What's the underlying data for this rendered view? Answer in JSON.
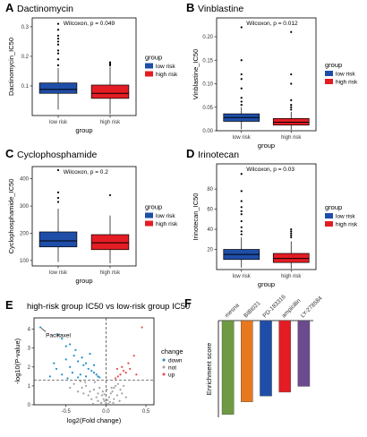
{
  "colors": {
    "low_risk": "#1f4ea8",
    "high_risk": "#e41d24",
    "down": "#1f8ec9",
    "not": "#a0a0a0",
    "up": "#e64b4b",
    "bars": [
      "#6e9a44",
      "#e8781e",
      "#1f4ea8",
      "#e41d24",
      "#6b4b8e"
    ]
  },
  "chart_data": [
    {
      "type": "box",
      "panel": "A",
      "title": "Dactinomycin",
      "xlabel": "group",
      "ylabel": "Dactinomycin_IC50",
      "categories": [
        "low risk",
        "high risk"
      ],
      "ylim": [
        0,
        0.33
      ],
      "yticks": [
        0.1,
        0.2,
        0.3
      ],
      "stat": "Wilcoxon, p = 0.049",
      "legend": {
        "title": "group",
        "items": [
          "low risk",
          "high risk"
        ]
      },
      "boxes": [
        {
          "q1": 0.075,
          "median": 0.088,
          "q3": 0.11,
          "whisker_low": 0.02,
          "whisker_high": 0.16,
          "outliers": [
            0.17,
            0.19,
            0.21,
            0.22,
            0.24,
            0.25,
            0.26,
            0.27,
            0.29,
            0.31
          ]
        },
        {
          "q1": 0.058,
          "median": 0.075,
          "q3": 0.103,
          "whisker_low": 0.005,
          "whisker_high": 0.165,
          "outliers": [
            0.17,
            0.175,
            0.18
          ]
        }
      ]
    },
    {
      "type": "box",
      "panel": "B",
      "title": "Vinblastine",
      "xlabel": "group",
      "ylabel": "Vinblastine_IC50",
      "categories": [
        "low risk",
        "high risk"
      ],
      "ylim": [
        0,
        0.24
      ],
      "yticks": [
        0.0,
        0.05,
        0.1,
        0.15,
        0.2
      ],
      "tick_labels": [
        "0.00",
        "0.05",
        "0.10",
        "0.15",
        "0.20"
      ],
      "stat": "Wilcoxon, p = 0.012",
      "legend": {
        "title": "group",
        "items": [
          "low risk",
          "high risk"
        ]
      },
      "boxes": [
        {
          "q1": 0.02,
          "median": 0.028,
          "q3": 0.036,
          "whisker_low": 0.003,
          "whisker_high": 0.05,
          "outliers": [
            0.055,
            0.062,
            0.07,
            0.09,
            0.11,
            0.12,
            0.15,
            0.22
          ]
        },
        {
          "q1": 0.012,
          "median": 0.018,
          "q3": 0.026,
          "whisker_low": 0.002,
          "whisker_high": 0.04,
          "outliers": [
            0.045,
            0.05,
            0.055,
            0.065,
            0.1,
            0.12,
            0.21
          ]
        }
      ]
    },
    {
      "type": "box",
      "panel": "C",
      "title": "Cyclophosphamide",
      "xlabel": "group",
      "ylabel": "Cyclophosphamide_IC50",
      "categories": [
        "low risk",
        "high risk"
      ],
      "ylim": [
        80,
        445
      ],
      "yticks": [
        100,
        200,
        300,
        400
      ],
      "stat": "Wilcoxon, p = 0.2",
      "legend": {
        "title": "group",
        "items": [
          "low risk",
          "high risk"
        ]
      },
      "boxes": [
        {
          "q1": 150,
          "median": 172,
          "q3": 205,
          "whisker_low": 95,
          "whisker_high": 290,
          "outliers": [
            315,
            330,
            350,
            432
          ]
        },
        {
          "q1": 140,
          "median": 165,
          "q3": 195,
          "whisker_low": 90,
          "whisker_high": 265,
          "outliers": [
            340
          ]
        }
      ]
    },
    {
      "type": "box",
      "panel": "D",
      "title": "Irinotecan",
      "xlabel": "group",
      "ylabel": "Irinotecan_IC50",
      "categories": [
        "low risk",
        "high risk"
      ],
      "ylim": [
        0,
        105
      ],
      "yticks": [
        20,
        40,
        60,
        80
      ],
      "stat": "Wilcoxon, p = 0.03",
      "legend": {
        "title": "group",
        "items": [
          "low risk",
          "high risk"
        ]
      },
      "boxes": [
        {
          "q1": 10,
          "median": 15,
          "q3": 20,
          "whisker_low": 2,
          "whisker_high": 32,
          "outliers": [
            35,
            38,
            42,
            48,
            55,
            58,
            62,
            68,
            78,
            95
          ]
        },
        {
          "q1": 7,
          "median": 11,
          "q3": 16,
          "whisker_low": 1,
          "whisker_high": 28,
          "outliers": [
            32,
            34,
            36,
            38,
            40
          ]
        }
      ]
    },
    {
      "type": "scatter",
      "panel": "E",
      "title": "high-risk group IC50 vs low-risk group IC50",
      "xlabel": "log2(Fold change)",
      "ylabel": "-log10(P-value)",
      "xlim": [
        -0.9,
        0.6
      ],
      "ylim": [
        0,
        4.6
      ],
      "xticks": [
        -0.5,
        0.0,
        0.5
      ],
      "xtick_labels": [
        "-0.5",
        "0.0",
        "0.5"
      ],
      "yticks": [
        0,
        1,
        2,
        3,
        4
      ],
      "threshold_y": 1.3,
      "threshold_x": 0,
      "annotation": {
        "text": "Paclitaxel",
        "x": -0.82,
        "y": 4.1
      },
      "legend": {
        "title": "change",
        "items": [
          "down",
          "not",
          "up"
        ]
      },
      "points": {
        "down": [
          [
            -0.82,
            4.1
          ],
          [
            -0.6,
            3.7
          ],
          [
            -0.55,
            3.5
          ],
          [
            -0.5,
            3.1
          ],
          [
            -0.45,
            3.2
          ],
          [
            -0.4,
            2.6
          ],
          [
            -0.38,
            2.9
          ],
          [
            -0.35,
            2.3
          ],
          [
            -0.3,
            2.5
          ],
          [
            -0.28,
            2.1
          ],
          [
            -0.25,
            2.2
          ],
          [
            -0.22,
            1.9
          ],
          [
            -0.18,
            1.8
          ],
          [
            -0.15,
            1.7
          ],
          [
            -0.12,
            1.6
          ],
          [
            -0.5,
            2.4
          ],
          [
            -0.45,
            2.0
          ],
          [
            -0.62,
            1.9
          ],
          [
            -0.42,
            1.7
          ],
          [
            -0.2,
            2.7
          ],
          [
            -0.32,
            1.6
          ],
          [
            -0.1,
            1.5
          ],
          [
            -0.08,
            1.45
          ],
          [
            -0.55,
            1.6
          ],
          [
            -0.65,
            2.2
          ],
          [
            -0.35,
            1.45
          ],
          [
            -0.25,
            1.5
          ],
          [
            -0.7,
            1.5
          ],
          [
            -0.48,
            1.4
          ],
          [
            -0.15,
            2.1
          ]
        ],
        "not": [
          [
            -0.4,
            1.1
          ],
          [
            -0.3,
            0.9
          ],
          [
            -0.25,
            1.0
          ],
          [
            -0.2,
            0.7
          ],
          [
            -0.15,
            0.8
          ],
          [
            -0.1,
            0.6
          ],
          [
            -0.08,
            0.9
          ],
          [
            -0.05,
            0.5
          ],
          [
            -0.03,
            0.3
          ],
          [
            -0.02,
            0.2
          ],
          [
            0.0,
            0.1
          ],
          [
            0.02,
            0.25
          ],
          [
            0.04,
            0.4
          ],
          [
            0.06,
            0.6
          ],
          [
            0.08,
            0.7
          ],
          [
            0.1,
            0.9
          ],
          [
            0.12,
            1.0
          ],
          [
            0.15,
            1.1
          ],
          [
            0.18,
            0.8
          ],
          [
            0.2,
            0.6
          ],
          [
            -0.12,
            0.4
          ],
          [
            -0.18,
            0.3
          ],
          [
            -0.22,
            0.5
          ],
          [
            -0.28,
            0.6
          ],
          [
            -0.35,
            0.7
          ],
          [
            0.05,
            0.15
          ],
          [
            -0.06,
            0.1
          ],
          [
            0.03,
            0.05
          ],
          [
            0.1,
            0.3
          ],
          [
            0.14,
            0.5
          ],
          [
            -0.14,
            1.2
          ],
          [
            -0.26,
            1.2
          ],
          [
            0.22,
            1.0
          ],
          [
            -0.04,
            0.7
          ],
          [
            0.07,
            0.9
          ],
          [
            -0.45,
            0.9
          ],
          [
            0.25,
            0.4
          ],
          [
            -0.1,
            0.2
          ],
          [
            0.09,
            0.1
          ],
          [
            -0.02,
            0.55
          ],
          [
            -0.32,
            1.25
          ],
          [
            0.01,
            0.8
          ],
          [
            -0.16,
            0.05
          ],
          [
            0.17,
            0.2
          ]
        ],
        "up": [
          [
            0.45,
            4.1
          ],
          [
            0.35,
            2.6
          ],
          [
            0.28,
            2.2
          ],
          [
            0.22,
            1.8
          ],
          [
            0.18,
            1.6
          ],
          [
            0.15,
            1.5
          ],
          [
            0.3,
            1.9
          ],
          [
            0.25,
            1.7
          ],
          [
            0.12,
            1.4
          ],
          [
            0.2,
            2.0
          ],
          [
            0.38,
            1.6
          ],
          [
            0.14,
            1.9
          ]
        ]
      }
    },
    {
      "type": "bar",
      "panel": "F",
      "ylabel": "Enrichment score",
      "categories": [
        "mesna",
        "BIBI021",
        "PD-183316",
        "ampicillin",
        "LY-278584"
      ],
      "values": [
        -97,
        -84,
        -78,
        -74,
        -68
      ],
      "ylim": [
        -100,
        0
      ]
    }
  ]
}
